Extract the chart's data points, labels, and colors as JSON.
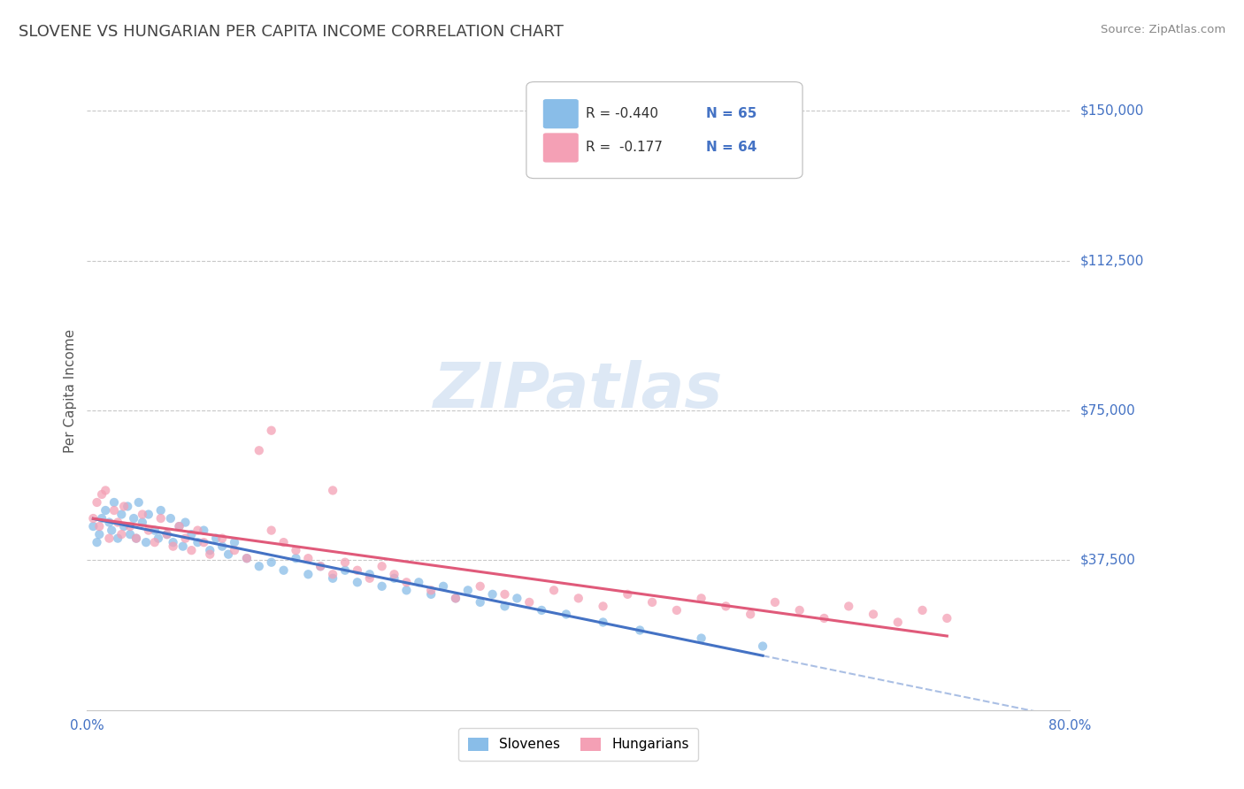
{
  "title": "SLOVENE VS HUNGARIAN PER CAPITA INCOME CORRELATION CHART",
  "source": "Source: ZipAtlas.com",
  "ylabel": "Per Capita Income",
  "xlim": [
    0.0,
    0.8
  ],
  "ylim": [
    0,
    160000
  ],
  "yticks": [
    37500,
    75000,
    112500,
    150000
  ],
  "ytick_labels": [
    "$37,500",
    "$75,000",
    "$112,500",
    "$150,000"
  ],
  "slovene_color": "#89bde8",
  "hungarian_color": "#f4a0b5",
  "slovene_line_color": "#4472c4",
  "hungarian_line_color": "#e05a7a",
  "title_color": "#555555",
  "tick_label_color": "#4472c4",
  "grid_color": "#c8c8c8",
  "watermark_text": "ZIPatlas",
  "watermark_color": "#dde8f5",
  "slovene_R": -0.44,
  "slovene_N": 65,
  "hungarian_R": -0.177,
  "hungarian_N": 64,
  "slovene_scatter_x": [
    0.005,
    0.008,
    0.01,
    0.012,
    0.015,
    0.018,
    0.02,
    0.022,
    0.025,
    0.028,
    0.03,
    0.033,
    0.035,
    0.038,
    0.04,
    0.042,
    0.045,
    0.048,
    0.05,
    0.055,
    0.058,
    0.06,
    0.065,
    0.068,
    0.07,
    0.075,
    0.078,
    0.08,
    0.085,
    0.09,
    0.095,
    0.1,
    0.105,
    0.11,
    0.115,
    0.12,
    0.13,
    0.14,
    0.15,
    0.16,
    0.17,
    0.18,
    0.19,
    0.2,
    0.21,
    0.22,
    0.23,
    0.24,
    0.25,
    0.26,
    0.27,
    0.28,
    0.29,
    0.3,
    0.31,
    0.32,
    0.33,
    0.34,
    0.35,
    0.37,
    0.39,
    0.42,
    0.45,
    0.5,
    0.55
  ],
  "slovene_scatter_y": [
    46000,
    42000,
    44000,
    48000,
    50000,
    47000,
    45000,
    52000,
    43000,
    49000,
    46000,
    51000,
    44000,
    48000,
    43000,
    52000,
    47000,
    42000,
    49000,
    45000,
    43000,
    50000,
    44000,
    48000,
    42000,
    46000,
    41000,
    47000,
    44000,
    42000,
    45000,
    40000,
    43000,
    41000,
    39000,
    42000,
    38000,
    36000,
    37000,
    35000,
    38000,
    34000,
    36000,
    33000,
    35000,
    32000,
    34000,
    31000,
    33000,
    30000,
    32000,
    29000,
    31000,
    28000,
    30000,
    27000,
    29000,
    26000,
    28000,
    25000,
    24000,
    22000,
    20000,
    18000,
    16000
  ],
  "hungarian_scatter_x": [
    0.005,
    0.008,
    0.01,
    0.015,
    0.018,
    0.022,
    0.025,
    0.028,
    0.03,
    0.035,
    0.04,
    0.045,
    0.05,
    0.055,
    0.06,
    0.065,
    0.07,
    0.075,
    0.08,
    0.085,
    0.09,
    0.095,
    0.1,
    0.11,
    0.12,
    0.13,
    0.14,
    0.15,
    0.16,
    0.17,
    0.18,
    0.19,
    0.2,
    0.21,
    0.22,
    0.23,
    0.24,
    0.25,
    0.26,
    0.28,
    0.3,
    0.32,
    0.34,
    0.36,
    0.38,
    0.4,
    0.42,
    0.44,
    0.46,
    0.48,
    0.5,
    0.52,
    0.54,
    0.56,
    0.58,
    0.6,
    0.62,
    0.64,
    0.66,
    0.68,
    0.7,
    0.012,
    0.15,
    0.2
  ],
  "hungarian_scatter_y": [
    48000,
    52000,
    46000,
    55000,
    43000,
    50000,
    47000,
    44000,
    51000,
    46000,
    43000,
    49000,
    45000,
    42000,
    48000,
    44000,
    41000,
    46000,
    43000,
    40000,
    45000,
    42000,
    39000,
    43000,
    40000,
    38000,
    65000,
    45000,
    42000,
    40000,
    38000,
    36000,
    34000,
    37000,
    35000,
    33000,
    36000,
    34000,
    32000,
    30000,
    28000,
    31000,
    29000,
    27000,
    30000,
    28000,
    26000,
    29000,
    27000,
    25000,
    28000,
    26000,
    24000,
    27000,
    25000,
    23000,
    26000,
    24000,
    22000,
    25000,
    23000,
    54000,
    70000,
    55000
  ]
}
